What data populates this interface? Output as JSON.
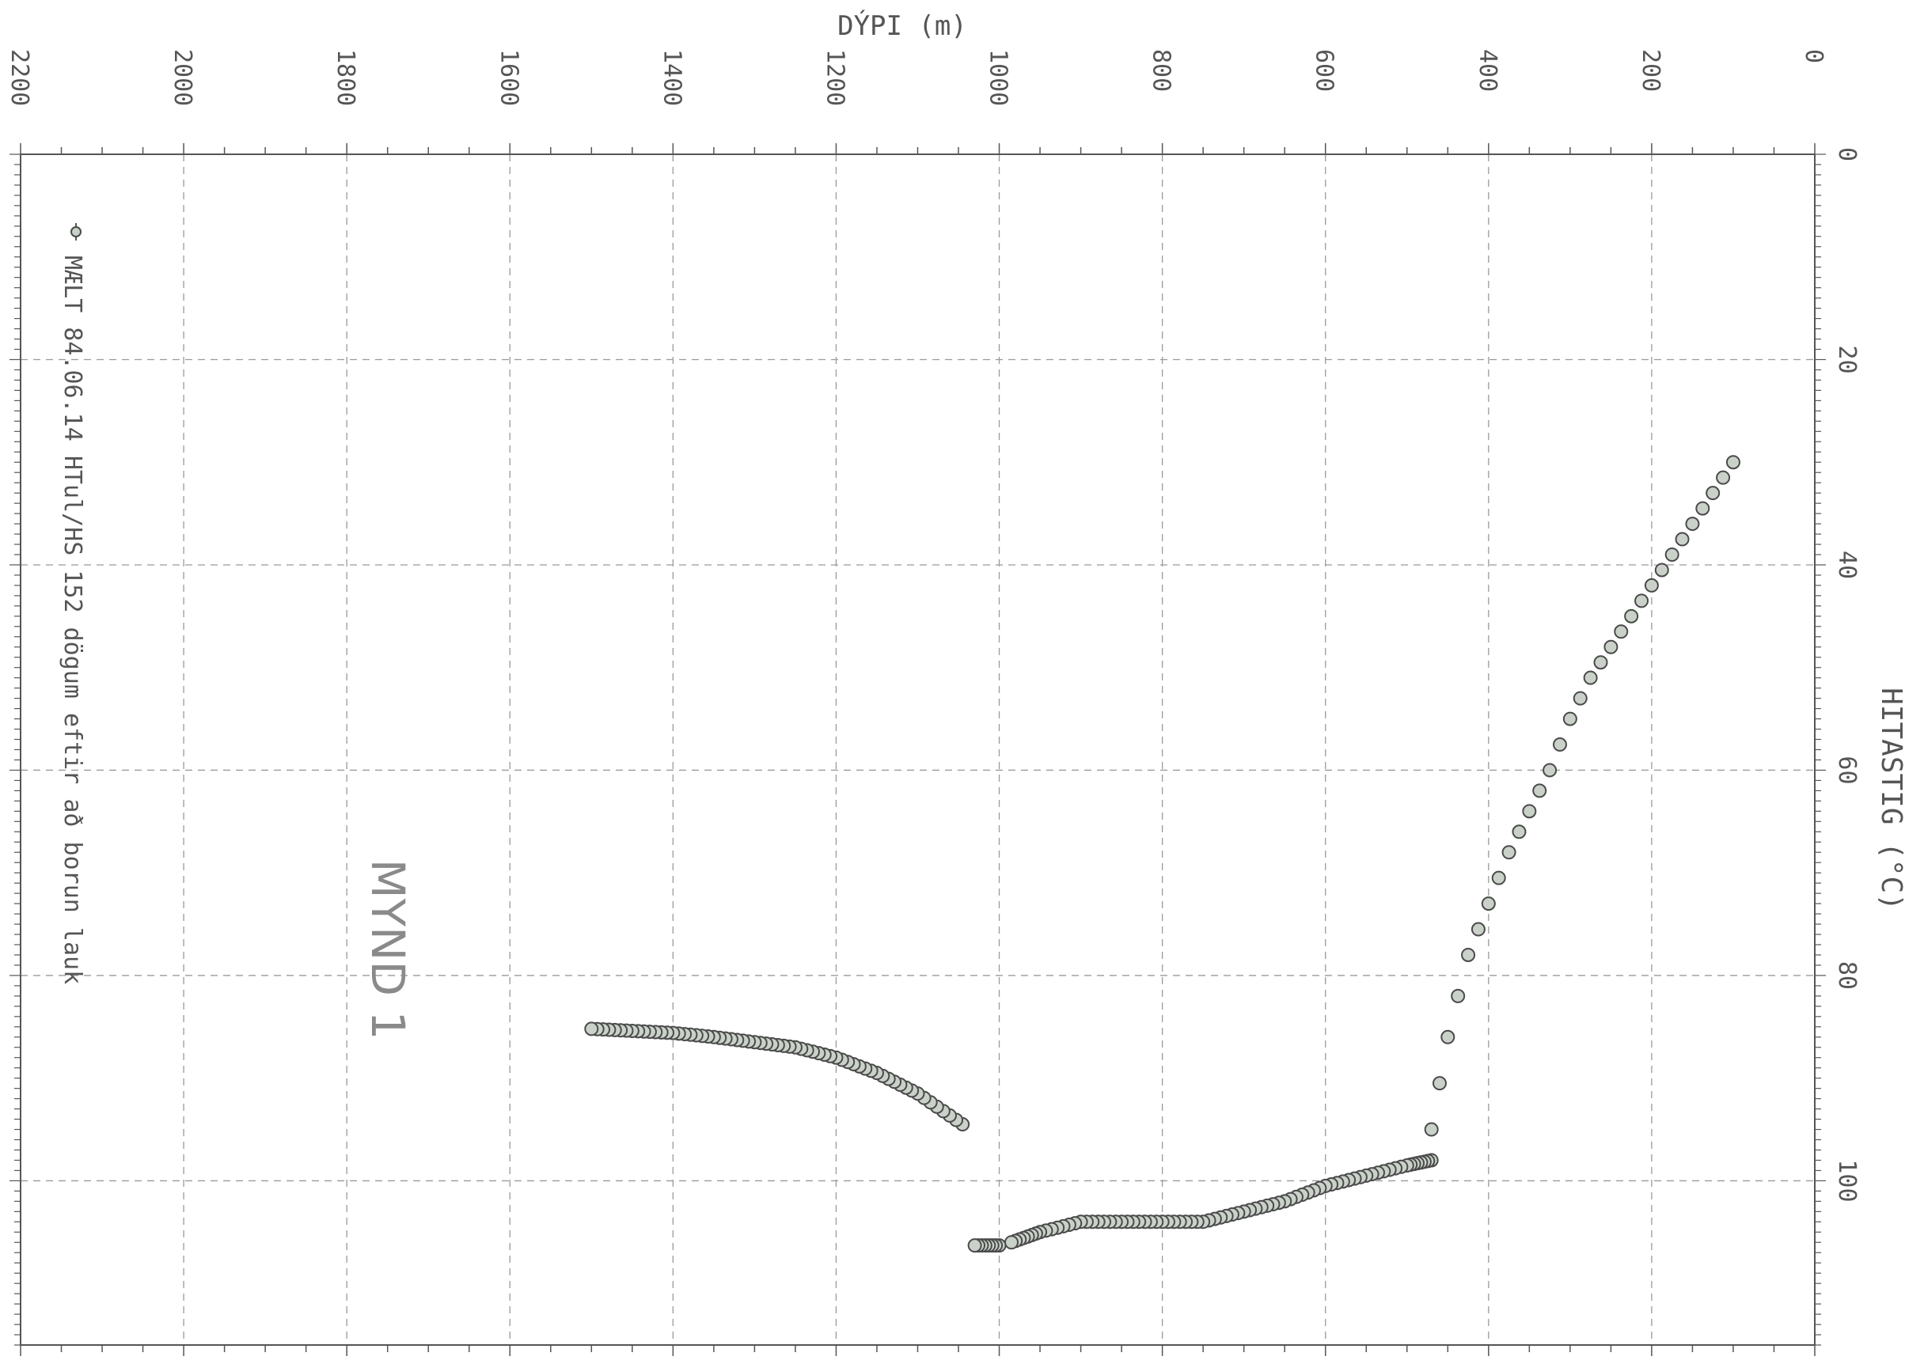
{
  "chart_data": {
    "type": "scatter",
    "title": "",
    "xlabel": "DÝPI (m)",
    "ylabel": "HITASTIG (°C)",
    "xlim": [
      0,
      2200
    ],
    "ylim": [
      0,
      116
    ],
    "x_ticks": [
      "0",
      "200",
      "400",
      "600",
      "800",
      "1000",
      "1200",
      "1400",
      "1600",
      "1800",
      "2000",
      "2200"
    ],
    "y_ticks": [
      "0",
      "20",
      "40",
      "60",
      "80",
      "100"
    ],
    "grid": true,
    "legend": {
      "position": "left",
      "label": "MÆLT 84.06.14 HTul/HS 152 dögum eftir að borun lauk",
      "marker": "circle"
    },
    "annotation": "MYND 1",
    "colors": {
      "ink": "#555555",
      "grid": "#9a9a9a",
      "marker_fill": "#c9d1c9",
      "marker_stroke": "#4a4a4a"
    },
    "series": [
      {
        "name": "MÆLT 84.06.14 HTul/HS 152 dögum eftir að borun lauk",
        "segments": [
          {
            "x": [
              100,
              125,
              150,
              175,
              200,
              225,
              250,
              275,
              300,
              325,
              350,
              375,
              400,
              425,
              450,
              470
            ],
            "y": [
              30,
              33,
              36,
              39,
              42,
              45,
              48,
              51,
              55,
              60,
              64,
              68,
              73,
              78,
              86,
              95
            ]
          },
          {
            "x": [
              470,
              500,
              550,
              600,
              650,
              700,
              750,
              800,
              850,
              900,
              950,
              985
            ],
            "y": [
              98,
              98.5,
              99.5,
              100.5,
              102,
              103,
              104,
              104,
              104,
              104,
              105,
              106
            ]
          },
          {
            "x": [
              1000,
              1030
            ],
            "y": [
              106.3,
              106.3
            ]
          },
          {
            "x": [
              1045,
              1100,
              1150,
              1200,
              1250,
              1300,
              1350,
              1400,
              1450,
              1500
            ],
            "y": [
              94.5,
              91.5,
              89.5,
              88,
              87,
              86.5,
              86,
              85.6,
              85.4,
              85.2
            ]
          }
        ]
      }
    ]
  }
}
